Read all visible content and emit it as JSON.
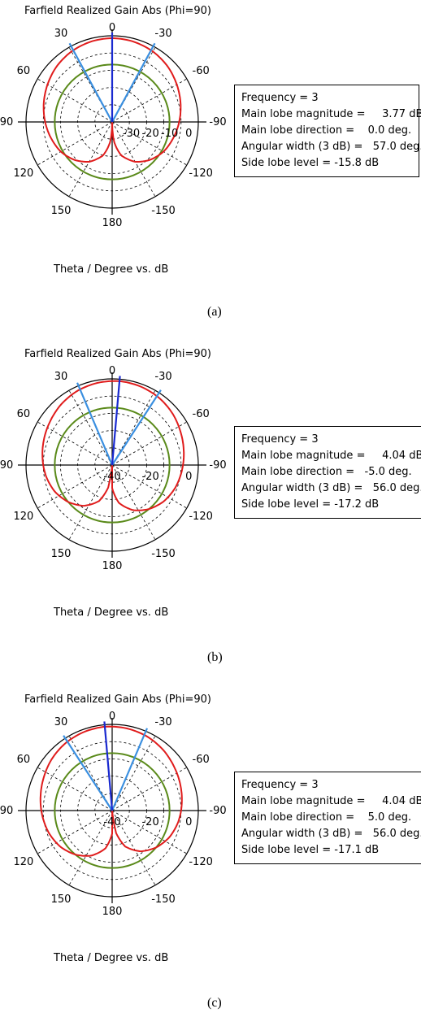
{
  "chart_data": [
    {
      "type": "polar",
      "title": "Farfield Realized Gain Abs (Phi=90)",
      "xlabel": "Theta / Degree vs. dB",
      "angle_ticks": [
        "0",
        "30",
        "60",
        "90",
        "120",
        "150",
        "180",
        "-150",
        "-120",
        "-90",
        "-60",
        "-30"
      ],
      "radial_ticks": [
        "-30",
        "-20",
        "-10",
        "0"
      ],
      "radial_range": [
        -40,
        5
      ],
      "info": [
        "Frequency = 3",
        "Main lobe magnitude =     3.77 dB",
        "Main lobe direction =    0.0 deg.",
        "Angular width (3 dB) =   57.0 deg.",
        "Side lobe level = -15.8 dB"
      ],
      "main_lobe_direction": 0.0,
      "beamwidth": 57.0,
      "series": [
        {
          "values": [
            [
              0,
              3.77
            ],
            [
              15,
              3.4
            ],
            [
              30,
              2.5
            ],
            [
              45,
              1.0
            ],
            [
              60,
              -1.0
            ],
            [
              75,
              -3.0
            ],
            [
              90,
              -5.0
            ],
            [
              105,
              -7.0
            ],
            [
              120,
              -9.0
            ],
            [
              135,
              -12.0
            ],
            [
              150,
              -16.0
            ],
            [
              165,
              -22.0
            ],
            [
              175,
              -30.0
            ],
            [
              180,
              -40.0
            ]
          ]
        },
        {
          "values": [
            [
              0,
              -10.0
            ],
            [
              90,
              -10.0
            ],
            [
              180,
              -10.0
            ]
          ]
        }
      ],
      "caption": "(a)"
    },
    {
      "type": "polar",
      "title": "Farfield Realized Gain Abs (Phi=90)",
      "xlabel": "Theta / Degree vs. dB",
      "angle_ticks": [
        "0",
        "30",
        "60",
        "90",
        "120",
        "150",
        "180",
        "-150",
        "-120",
        "-90",
        "-60",
        "-30"
      ],
      "radial_ticks": [
        "-40",
        "-20",
        "0"
      ],
      "radial_range": [
        -40,
        5
      ],
      "info": [
        "Frequency = 3",
        "Main lobe magnitude =     4.04 dB",
        "Main lobe direction =   -5.0 deg.",
        "Angular width (3 dB) =   56.0 deg.",
        "Side lobe level = -17.2 dB"
      ],
      "main_lobe_direction": -5.0,
      "beamwidth": 56.0,
      "series": [
        {
          "values": [
            [
              0,
              4.0
            ],
            [
              15,
              3.6
            ],
            [
              30,
              2.8
            ],
            [
              45,
              1.4
            ],
            [
              60,
              -0.4
            ],
            [
              75,
              -2.0
            ],
            [
              90,
              -3.5
            ],
            [
              105,
              -5.0
            ],
            [
              120,
              -7.0
            ],
            [
              135,
              -10.0
            ],
            [
              150,
              -14.0
            ],
            [
              165,
              -20.0
            ],
            [
              175,
              -28.0
            ],
            [
              180,
              -40.0
            ]
          ]
        },
        {
          "values": [
            [
              0,
              -10.0
            ],
            [
              90,
              -10.0
            ],
            [
              180,
              -10.0
            ]
          ]
        }
      ],
      "caption": "(b)"
    },
    {
      "type": "polar",
      "title": "Farfield Realized Gain Abs (Phi=90)",
      "xlabel": "Theta / Degree vs. dB",
      "angle_ticks": [
        "0",
        "30",
        "60",
        "90",
        "120",
        "150",
        "180",
        "-150",
        "-120",
        "-90",
        "-60",
        "-30"
      ],
      "radial_ticks": [
        "-40",
        "-20",
        "0"
      ],
      "radial_range": [
        -40,
        5
      ],
      "info": [
        "Frequency = 3",
        "Main lobe magnitude =     4.04 dB",
        "Main lobe direction =    5.0 deg.",
        "Angular width (3 dB) =   56.0 deg.",
        "Side lobe level = -17.1 dB"
      ],
      "main_lobe_direction": 5.0,
      "beamwidth": 56.0,
      "series": [
        {
          "values": [
            [
              0,
              4.0
            ],
            [
              15,
              3.6
            ],
            [
              30,
              2.8
            ],
            [
              45,
              1.4
            ],
            [
              60,
              -0.4
            ],
            [
              75,
              -2.0
            ],
            [
              90,
              -3.5
            ],
            [
              105,
              -5.0
            ],
            [
              120,
              -7.0
            ],
            [
              135,
              -10.0
            ],
            [
              150,
              -14.0
            ],
            [
              165,
              -20.0
            ],
            [
              175,
              -28.0
            ],
            [
              180,
              -40.0
            ]
          ]
        },
        {
          "values": [
            [
              0,
              -10.0
            ],
            [
              90,
              -10.0
            ],
            [
              180,
              -10.0
            ]
          ]
        }
      ],
      "caption": "(c)"
    }
  ],
  "colors": {
    "pattern": "#e01c1c",
    "reference": "#5a8a1a",
    "main_lobe": "#1a2ad0",
    "beamwidth": "#3a8fe0",
    "grid": "#000000"
  }
}
